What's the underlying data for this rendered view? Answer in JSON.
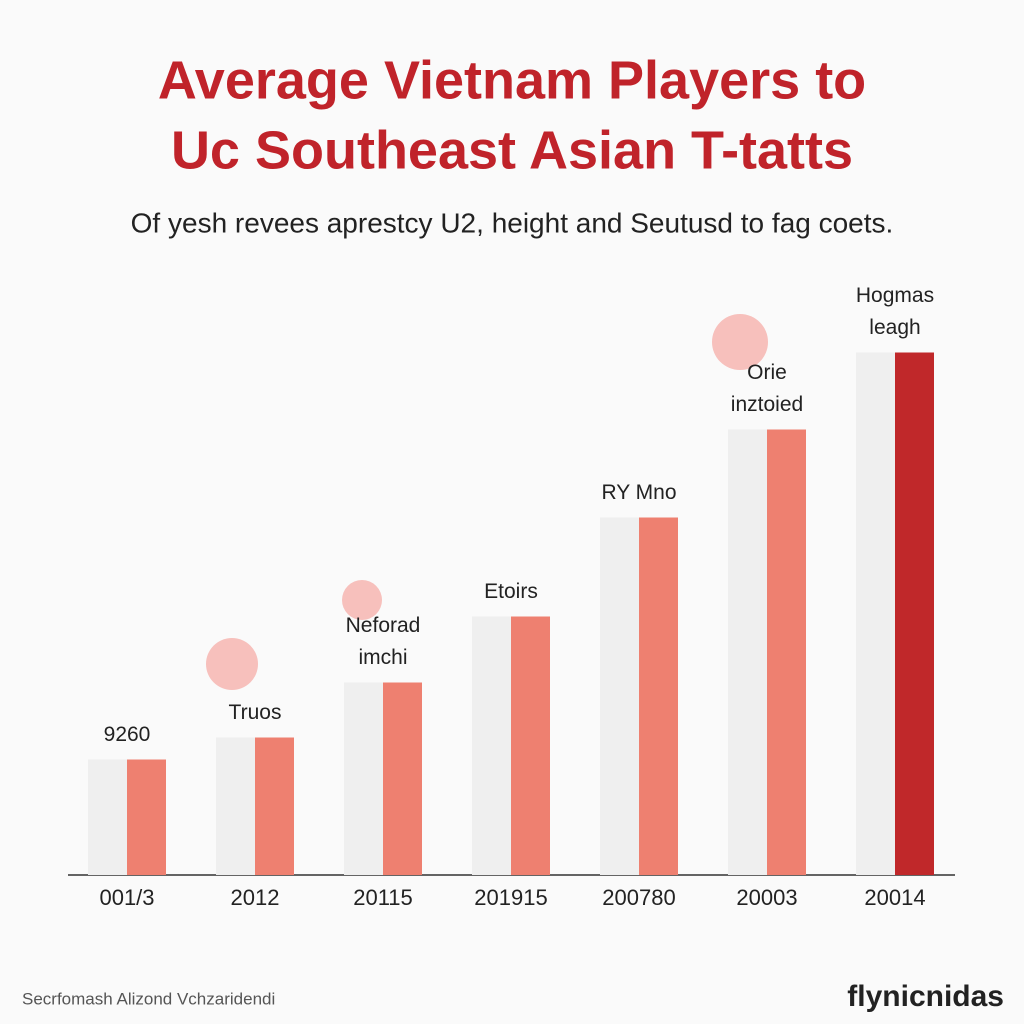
{
  "chart_data": {
    "type": "bar",
    "title_lines": [
      "Average Vietnam Players to",
      "Uc Southeast Asian T-tatts"
    ],
    "subtitle": "Of yesh revees aprestcy U2, height and Seutusd to fag coets.",
    "categories": [
      "001/3",
      "2012",
      "20115",
      "201915",
      "200780",
      "20003",
      "20014"
    ],
    "series": [
      {
        "color": "#efefef",
        "values": [
          21,
          25,
          35,
          47,
          65,
          81,
          95
        ]
      },
      {
        "color": "#ee8070",
        "colors": [
          "#ee8070",
          "#ee8070",
          "#ee8070",
          "#ee8070",
          "#ee8070",
          "#ee8070",
          "#c0282a"
        ],
        "values": [
          21,
          25,
          35,
          47,
          65,
          81,
          95
        ]
      }
    ],
    "annotations": [
      [
        "9260"
      ],
      [
        "Truos"
      ],
      [
        "Neforad",
        "imchi"
      ],
      [
        "Etoirs"
      ],
      [
        "RY Mno"
      ],
      [
        "Orie",
        "inztoied"
      ],
      [
        "Hogmas",
        "leagh"
      ]
    ],
    "ylim": [
      0,
      100
    ],
    "footer": "Secrfomash Alizond Vchzaridendi",
    "brand": "flynicnidas"
  }
}
